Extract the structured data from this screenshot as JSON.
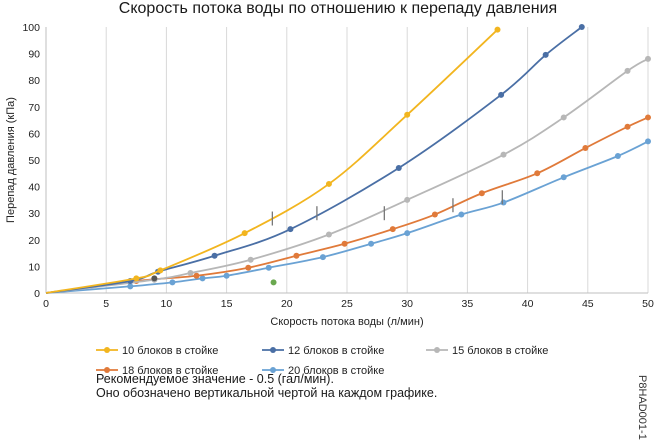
{
  "chart_data": {
    "type": "line",
    "title": "Скорость потока воды по отношению к перепаду давления",
    "xlabel": "Скорость потока воды  (л/мин)",
    "ylabel": "Перепад давления (кПа)",
    "xlim": [
      0,
      50
    ],
    "ylim": [
      0,
      100
    ],
    "x_ticks": [
      "0",
      "5",
      "10",
      "15",
      "20",
      "25",
      "30",
      "35",
      "40",
      "45",
      "50"
    ],
    "y_ticks": [
      "0",
      "10",
      "20",
      "30",
      "40",
      "50",
      "60",
      "70",
      "80",
      "90",
      "100"
    ],
    "grid": "vertical",
    "legend_position": "bottom",
    "series": [
      {
        "name": "10 блоков в стойке",
        "color": "#f2b51f",
        "x": [
          0,
          7.5,
          9.5,
          16.5,
          23.5,
          30,
          37.5
        ],
        "y": [
          0,
          5.5,
          8.5,
          22.5,
          41,
          67,
          99
        ],
        "marker_x": 18.8,
        "marker_y": 28
      },
      {
        "name": "12 блоков в стойке",
        "color": "#4a6fa5",
        "x": [
          0,
          7,
          9.3,
          14,
          20.3,
          29.3,
          37.8,
          41.5,
          44.5
        ],
        "y": [
          0,
          4.5,
          8,
          14,
          24,
          47,
          74.5,
          89.5,
          100
        ],
        "marker_x": 22.5,
        "marker_y": 30
      },
      {
        "name": "15 блоков в стойке",
        "color": "#b7b7b7",
        "x": [
          0,
          9,
          12,
          17,
          23.5,
          30,
          38,
          43,
          48.3,
          50
        ],
        "y": [
          0,
          5,
          7.5,
          12.5,
          22,
          35,
          52,
          66,
          83.5,
          88
        ],
        "marker_x": 28.1,
        "marker_y": 30
      },
      {
        "name": "18 блоков в стойке",
        "color": "#e07a3a",
        "x": [
          0,
          7.5,
          12.5,
          16.8,
          20.8,
          24.8,
          28.8,
          32.3,
          36.2,
          40.8,
          44.8,
          48.3,
          50
        ],
        "y": [
          0,
          4.5,
          6.5,
          9.5,
          14,
          18.5,
          24,
          29.5,
          37.5,
          45,
          54.5,
          62.5,
          66
        ],
        "marker_x": 33.8,
        "marker_y": 33
      },
      {
        "name": "20 блоков в стойке",
        "color": "#6aa2d4",
        "x": [
          0,
          7,
          10.5,
          13,
          15,
          18.5,
          23,
          27,
          30,
          34.5,
          38,
          43,
          47.5,
          50
        ],
        "y": [
          0,
          2.5,
          4,
          5.5,
          6.5,
          9.5,
          13.5,
          18.5,
          22.5,
          29.5,
          34,
          43.5,
          51.5,
          57
        ],
        "marker_x": 37.9,
        "marker_y": 36
      }
    ],
    "extra_points": [
      {
        "x": 18.9,
        "y": 4,
        "color": "#6aa84f"
      },
      {
        "x": 9,
        "y": 5.5,
        "color": "#555555"
      }
    ]
  },
  "notes": {
    "line1": "Рекомендуемое значение - 0.5 (гал/мин).",
    "line2": "Оно обозначено вертикальной чертой на каждом графике."
  },
  "figure_id": "P8HAD001-1"
}
